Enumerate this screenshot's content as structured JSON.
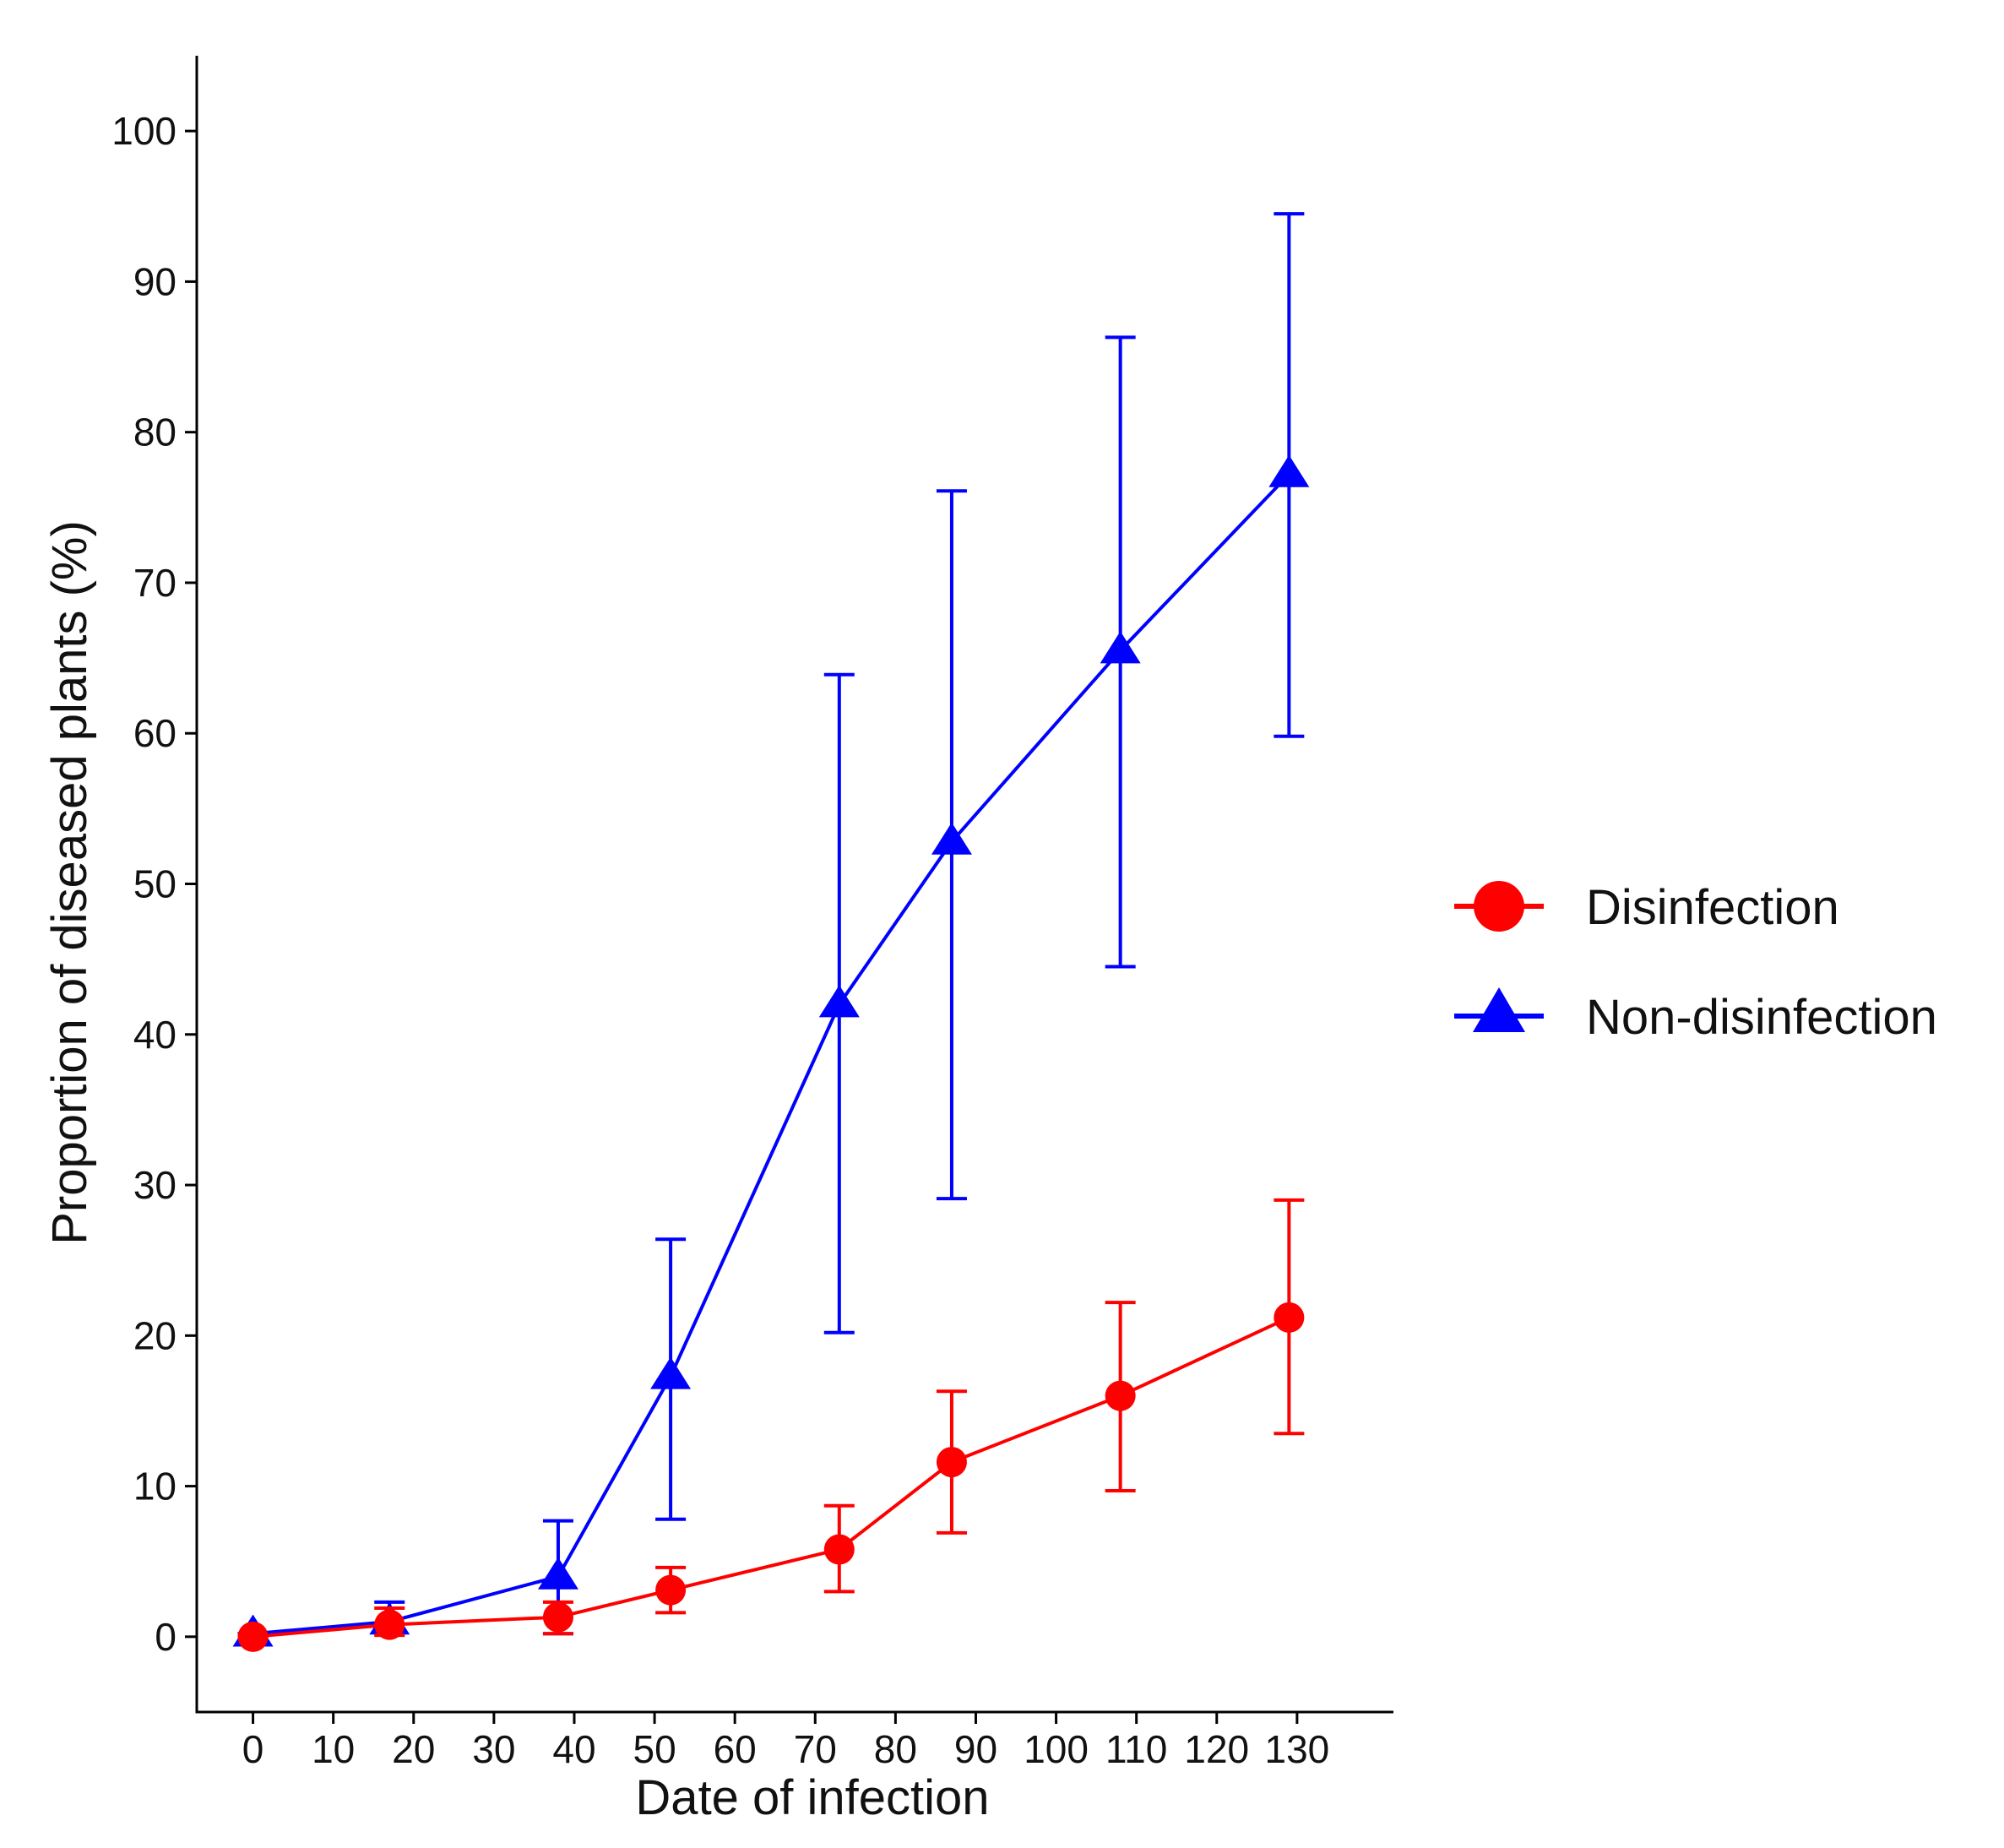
{
  "chart_data": {
    "type": "line",
    "title": "",
    "xlabel": "Date of infection",
    "ylabel": "Proportion of diseased plants (%)",
    "xlim": [
      -7,
      142
    ],
    "ylim": [
      -5,
      105
    ],
    "x_ticks": [
      0,
      10,
      20,
      30,
      40,
      50,
      60,
      70,
      80,
      90,
      100,
      110,
      120,
      130
    ],
    "y_ticks": [
      0,
      10,
      20,
      30,
      40,
      50,
      60,
      70,
      80,
      90,
      100
    ],
    "grid": false,
    "legend_position": "right",
    "series": [
      {
        "name": "Disinfection",
        "color": "#ff0000",
        "marker": "circle",
        "x": [
          0,
          17,
          38,
          52,
          73,
          87,
          108,
          129
        ],
        "y": [
          0,
          0.8,
          1.3,
          3.1,
          5.8,
          11.6,
          16.0,
          21.2
        ],
        "err_low": [
          0,
          0.1,
          0.2,
          1.6,
          3.0,
          6.9,
          9.7,
          13.5
        ],
        "err_high": [
          0,
          1.9,
          2.3,
          4.6,
          8.7,
          16.3,
          22.2,
          29.0
        ]
      },
      {
        "name": "Non-disinfection",
        "color": "#0000ff",
        "marker": "triangle",
        "x": [
          0,
          17,
          38,
          52,
          73,
          87,
          108,
          129
        ],
        "y": [
          0.2,
          1.0,
          4.0,
          17.3,
          42.0,
          52.8,
          65.5,
          77.2
        ],
        "err_low": [
          0.2,
          0.2,
          0.2,
          7.8,
          20.2,
          29.1,
          44.5,
          59.8
        ],
        "err_high": [
          0.2,
          2.3,
          7.7,
          26.4,
          63.9,
          76.1,
          86.3,
          94.5
        ]
      }
    ]
  }
}
